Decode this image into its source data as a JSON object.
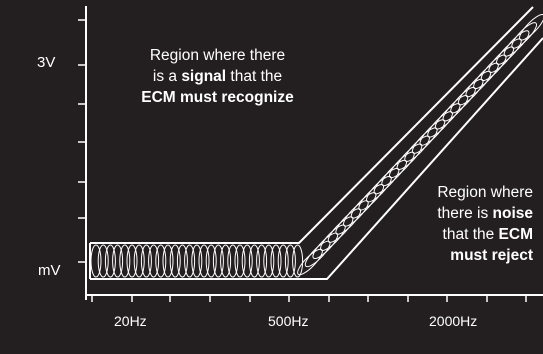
{
  "y_axis_labels": {
    "top": "3V",
    "bottom": "mV"
  },
  "x_axis_labels": [
    "20Hz",
    "500Hz",
    "2000Hz"
  ],
  "signal_region": {
    "lines": [
      [
        {
          "text": "Region where there",
          "bold": false
        }
      ],
      [
        {
          "text": "is a ",
          "bold": false
        },
        {
          "text": "signal",
          "bold": true
        },
        {
          "text": " that the",
          "bold": false
        }
      ],
      [
        {
          "text": "ECM must recognize",
          "bold": true
        }
      ]
    ]
  },
  "noise_region": {
    "lines": [
      [
        {
          "text": "Region where",
          "bold": false
        }
      ],
      [
        {
          "text": "there is ",
          "bold": false
        },
        {
          "text": "noise",
          "bold": true
        }
      ],
      [
        {
          "text": "that the ",
          "bold": false
        },
        {
          "text": "ECM",
          "bold": true
        }
      ],
      [
        {
          "text": "must reject",
          "bold": true
        }
      ]
    ]
  },
  "colors": {
    "background": "#231f20",
    "foreground": "#ffffff"
  }
}
